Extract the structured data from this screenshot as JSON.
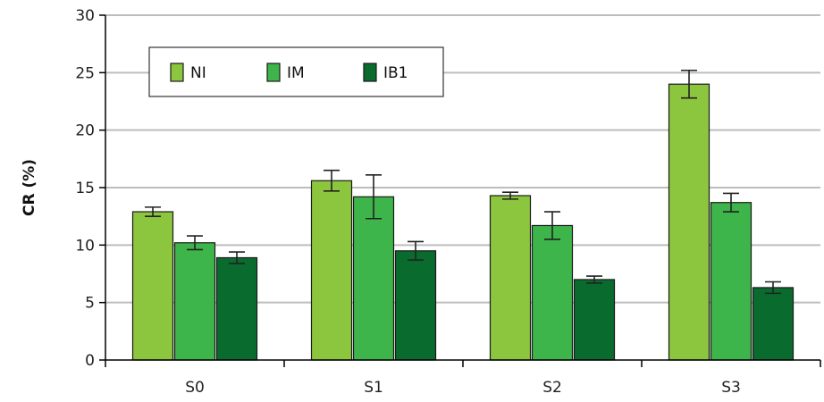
{
  "chart_data": {
    "type": "bar",
    "title": "",
    "xlabel": "",
    "ylabel": "CR (%)",
    "ylim": [
      0,
      30
    ],
    "yticks": [
      0,
      5,
      10,
      15,
      20,
      25,
      30
    ],
    "grid": true,
    "legend_position": "top-left",
    "categories": [
      "S0",
      "S1",
      "S2",
      "S3"
    ],
    "series": [
      {
        "name": "NI",
        "color": "#8cc63f",
        "values": [
          12.9,
          15.6,
          14.3,
          24.0
        ],
        "errors": [
          0.4,
          0.9,
          0.3,
          1.2
        ]
      },
      {
        "name": "IM",
        "color": "#3db54a",
        "values": [
          10.2,
          14.2,
          11.7,
          13.7
        ],
        "errors": [
          0.6,
          1.9,
          1.2,
          0.8
        ]
      },
      {
        "name": "IB1",
        "color": "#0a6b2e",
        "values": [
          8.9,
          9.5,
          7.0,
          6.3
        ],
        "errors": [
          0.5,
          0.8,
          0.3,
          0.5
        ]
      }
    ]
  }
}
